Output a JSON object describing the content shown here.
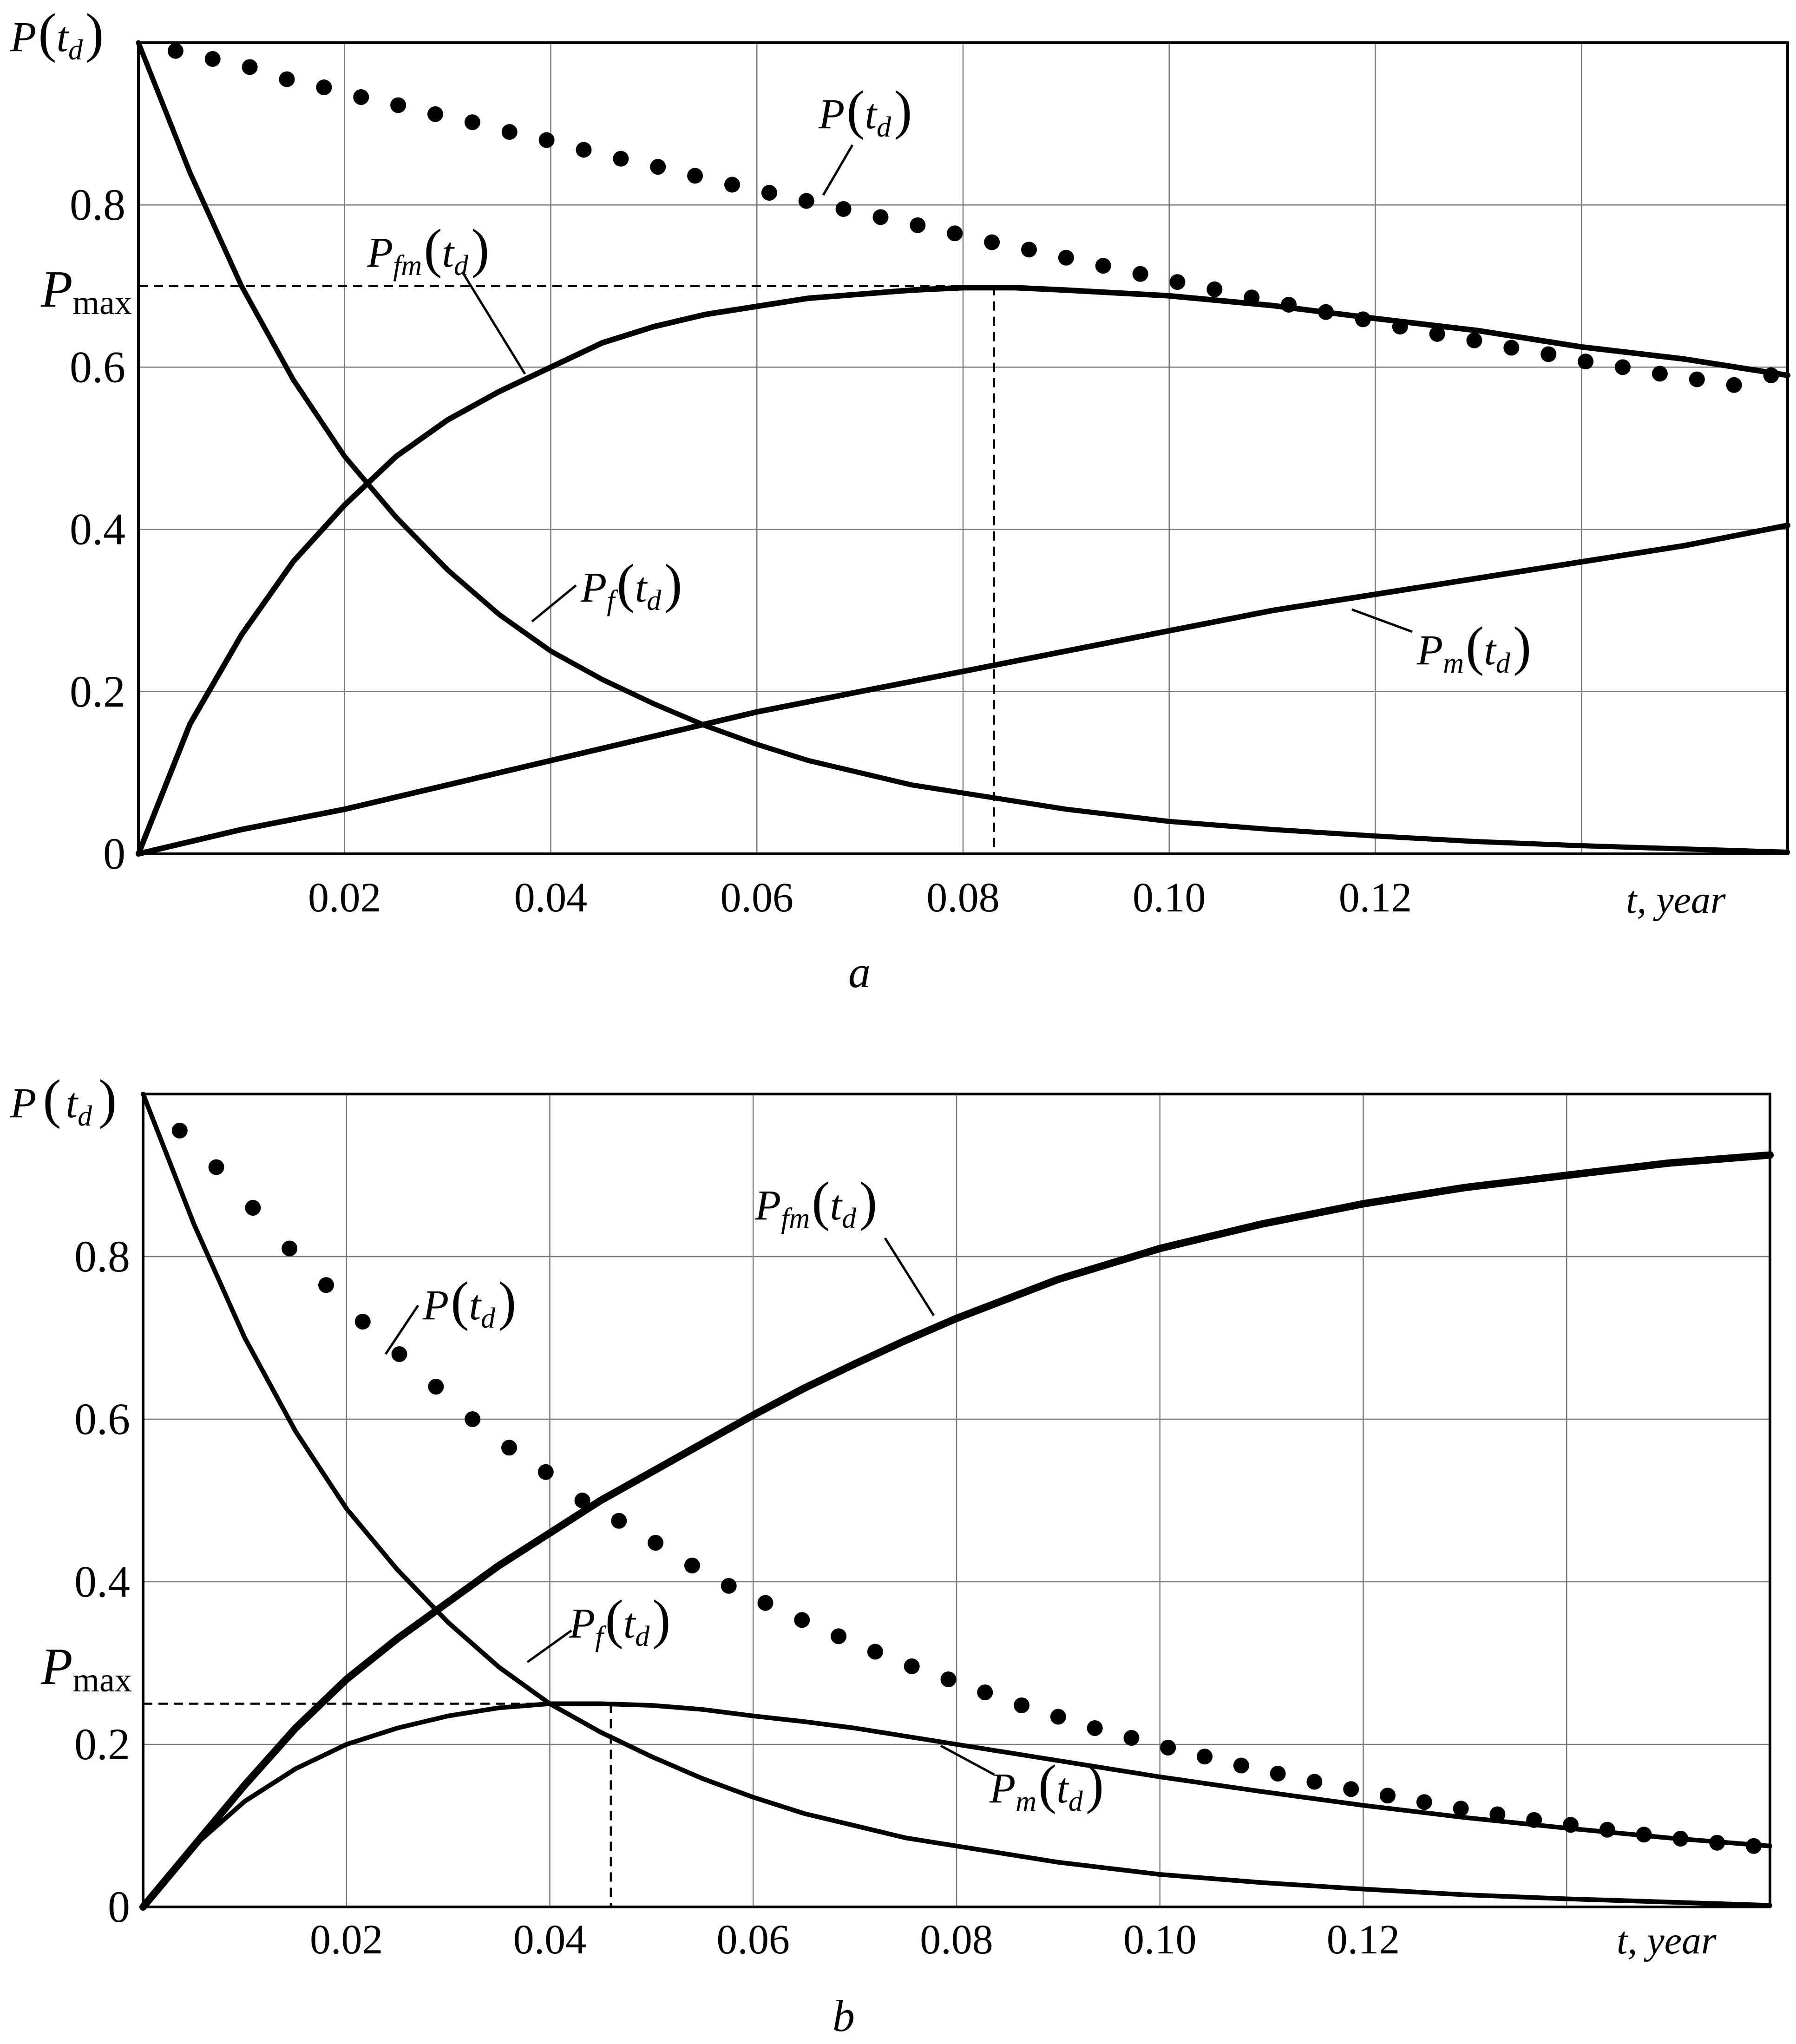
{
  "chart_data": [
    {
      "type": "line",
      "panel_label": "a",
      "xlabel": "t, year",
      "xlim": [
        0,
        0.16
      ],
      "ylim": [
        0,
        1
      ],
      "x_tick_labels": [
        "0.02",
        "0.04",
        "0.06",
        "0.08",
        "0.10",
        "0.12"
      ],
      "y_tick_labels": [
        "0",
        "0.2",
        "0.4",
        "0.6",
        "0.8"
      ],
      "grid": true,
      "pmax": 0.7,
      "pmax_t": 0.083,
      "pmax_text": "max",
      "labels": {
        "y_axis": {
          "main": "P",
          "sub": "d"
        },
        "P": {
          "main": "P",
          "sub": "d"
        },
        "Pfm": {
          "main": "P",
          "sub": "fm",
          "sub2": "d"
        },
        "Pf": {
          "main": "P",
          "sub": "f",
          "sub2": "d"
        },
        "Pm": {
          "main": "P",
          "sub": "m",
          "sub2": "d"
        }
      },
      "series": [
        {
          "name": "P(t_d)",
          "style": "dotted",
          "x": [
            0.0036,
            0.0072,
            0.0108,
            0.0144,
            0.018,
            0.0216,
            0.0252,
            0.0288,
            0.0324,
            0.036,
            0.0396,
            0.0432,
            0.0468,
            0.0504,
            0.054,
            0.0576,
            0.0612,
            0.0648,
            0.0684,
            0.072,
            0.0756,
            0.0792,
            0.0828,
            0.0864,
            0.09,
            0.0936,
            0.0972,
            0.1008,
            0.1044,
            0.108,
            0.1116,
            0.1152,
            0.1188,
            0.1224,
            0.126,
            0.1296,
            0.1332,
            0.1368,
            0.1404,
            0.144,
            0.1476,
            0.1512,
            0.1548,
            0.1584
          ],
          "y": [
            0.99,
            0.98,
            0.97,
            0.955,
            0.945,
            0.933,
            0.923,
            0.912,
            0.902,
            0.89,
            0.88,
            0.868,
            0.857,
            0.847,
            0.836,
            0.825,
            0.815,
            0.805,
            0.795,
            0.785,
            0.775,
            0.765,
            0.754,
            0.745,
            0.735,
            0.725,
            0.715,
            0.705,
            0.696,
            0.686,
            0.677,
            0.668,
            0.659,
            0.65,
            0.641,
            0.633,
            0.624,
            0.616,
            0.607,
            0.6,
            0.592,
            0.585,
            0.578,
            0.59
          ]
        },
        {
          "name": "Pf(t_d)",
          "style": "solid",
          "x": [
            0,
            0.005,
            0.01,
            0.015,
            0.02,
            0.025,
            0.03,
            0.035,
            0.04,
            0.045,
            0.05,
            0.055,
            0.06,
            0.065,
            0.07,
            0.075,
            0.08,
            0.09,
            0.1,
            0.11,
            0.12,
            0.13,
            0.14,
            0.15,
            0.16
          ],
          "y": [
            1.0,
            0.84,
            0.7,
            0.585,
            0.49,
            0.415,
            0.35,
            0.295,
            0.25,
            0.215,
            0.185,
            0.158,
            0.135,
            0.115,
            0.1,
            0.085,
            0.075,
            0.055,
            0.04,
            0.03,
            0.022,
            0.015,
            0.01,
            0.006,
            0.002
          ]
        },
        {
          "name": "Pfm(t_d)",
          "style": "solid",
          "x": [
            0,
            0.005,
            0.01,
            0.015,
            0.02,
            0.025,
            0.03,
            0.035,
            0.04,
            0.045,
            0.05,
            0.055,
            0.06,
            0.065,
            0.07,
            0.075,
            0.08,
            0.085,
            0.09,
            0.1,
            0.11,
            0.12,
            0.13,
            0.14,
            0.15,
            0.16
          ],
          "y": [
            0,
            0.16,
            0.27,
            0.36,
            0.43,
            0.49,
            0.535,
            0.57,
            0.6,
            0.63,
            0.65,
            0.665,
            0.675,
            0.685,
            0.69,
            0.695,
            0.698,
            0.698,
            0.695,
            0.688,
            0.676,
            0.66,
            0.645,
            0.625,
            0.61,
            0.59
          ]
        },
        {
          "name": "Pm(t_d)",
          "style": "solid",
          "x": [
            0,
            0.01,
            0.02,
            0.03,
            0.04,
            0.05,
            0.06,
            0.07,
            0.08,
            0.09,
            0.1,
            0.11,
            0.12,
            0.13,
            0.14,
            0.15,
            0.16
          ],
          "y": [
            0,
            0.03,
            0.055,
            0.085,
            0.115,
            0.145,
            0.175,
            0.2,
            0.225,
            0.25,
            0.275,
            0.3,
            0.32,
            0.34,
            0.36,
            0.38,
            0.405
          ]
        }
      ]
    },
    {
      "type": "line",
      "panel_label": "b",
      "xlabel": "t, year",
      "xlim": [
        0,
        0.16
      ],
      "ylim": [
        0,
        1
      ],
      "x_tick_labels": [
        "0.02",
        "0.04",
        "0.06",
        "0.08",
        "0.10",
        "0.12"
      ],
      "y_tick_labels": [
        "0",
        "0.2",
        "0.4",
        "0.6",
        "0.8"
      ],
      "grid": true,
      "pmax": 0.25,
      "pmax_t": 0.046,
      "pmax_text": "max",
      "labels": {
        "y_axis": {
          "main": "P",
          "sub": "d"
        },
        "P": {
          "main": "P",
          "sub": "d"
        },
        "Pfm": {
          "main": "P",
          "sub": "fm",
          "sub2": "d"
        },
        "Pf": {
          "main": "P",
          "sub": "f",
          "sub2": "d"
        },
        "Pm": {
          "main": "P",
          "sub": "m",
          "sub2": "d"
        }
      },
      "series": [
        {
          "name": "P(t_d)",
          "style": "dotted",
          "x": [
            0.0036,
            0.0072,
            0.0108,
            0.0144,
            0.018,
            0.0216,
            0.0252,
            0.0288,
            0.0324,
            0.036,
            0.0396,
            0.0432,
            0.0468,
            0.0504,
            0.054,
            0.0576,
            0.0612,
            0.0648,
            0.0684,
            0.072,
            0.0756,
            0.0792,
            0.0828,
            0.0864,
            0.09,
            0.0936,
            0.0972,
            0.1008,
            0.1044,
            0.108,
            0.1116,
            0.1152,
            0.1188,
            0.1224,
            0.126,
            0.1296,
            0.1332,
            0.1368,
            0.1404,
            0.144,
            0.1476,
            0.1512,
            0.1548,
            0.1584
          ],
          "y": [
            0.955,
            0.91,
            0.86,
            0.81,
            0.765,
            0.72,
            0.68,
            0.64,
            0.6,
            0.565,
            0.535,
            0.5,
            0.475,
            0.448,
            0.42,
            0.395,
            0.374,
            0.353,
            0.333,
            0.314,
            0.296,
            0.28,
            0.264,
            0.248,
            0.234,
            0.22,
            0.208,
            0.196,
            0.185,
            0.174,
            0.164,
            0.154,
            0.145,
            0.137,
            0.129,
            0.121,
            0.114,
            0.107,
            0.101,
            0.095,
            0.089,
            0.084,
            0.079,
            0.075
          ]
        },
        {
          "name": "Pf(t_d)",
          "style": "solid",
          "x": [
            0,
            0.005,
            0.01,
            0.015,
            0.02,
            0.025,
            0.03,
            0.035,
            0.04,
            0.045,
            0.05,
            0.055,
            0.06,
            0.065,
            0.07,
            0.075,
            0.08,
            0.09,
            0.1,
            0.11,
            0.12,
            0.13,
            0.14,
            0.15,
            0.16
          ],
          "y": [
            1.0,
            0.84,
            0.7,
            0.585,
            0.49,
            0.415,
            0.35,
            0.295,
            0.25,
            0.215,
            0.185,
            0.158,
            0.135,
            0.115,
            0.1,
            0.085,
            0.075,
            0.055,
            0.04,
            0.03,
            0.022,
            0.015,
            0.01,
            0.006,
            0.002
          ]
        },
        {
          "name": "Pfm(t_d)",
          "style": "solid",
          "x": [
            0,
            0.005,
            0.01,
            0.015,
            0.02,
            0.025,
            0.03,
            0.035,
            0.04,
            0.045,
            0.05,
            0.055,
            0.06,
            0.065,
            0.07,
            0.075,
            0.08,
            0.09,
            0.1,
            0.11,
            0.12,
            0.13,
            0.14,
            0.15,
            0.16
          ],
          "y": [
            0,
            0.075,
            0.15,
            0.22,
            0.28,
            0.33,
            0.375,
            0.42,
            0.46,
            0.5,
            0.535,
            0.57,
            0.605,
            0.638,
            0.668,
            0.697,
            0.724,
            0.772,
            0.81,
            0.84,
            0.865,
            0.885,
            0.9,
            0.915,
            0.925
          ]
        },
        {
          "name": "Pm(t_d)",
          "style": "solid",
          "x": [
            0,
            0.005,
            0.01,
            0.015,
            0.02,
            0.025,
            0.03,
            0.035,
            0.04,
            0.045,
            0.05,
            0.055,
            0.06,
            0.065,
            0.07,
            0.075,
            0.08,
            0.09,
            0.1,
            0.11,
            0.12,
            0.13,
            0.14,
            0.15,
            0.16
          ],
          "y": [
            0,
            0.075,
            0.13,
            0.17,
            0.2,
            0.22,
            0.235,
            0.245,
            0.25,
            0.25,
            0.248,
            0.243,
            0.235,
            0.228,
            0.22,
            0.21,
            0.2,
            0.18,
            0.16,
            0.142,
            0.125,
            0.11,
            0.097,
            0.085,
            0.075
          ]
        }
      ]
    }
  ]
}
